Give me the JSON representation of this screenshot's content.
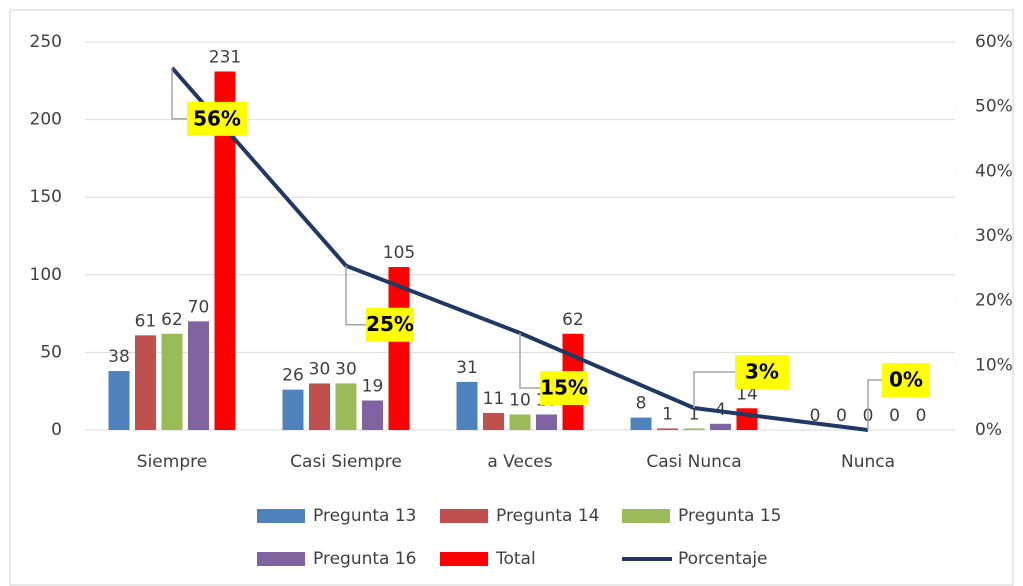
{
  "chart_data": {
    "type": "bar",
    "categories": [
      "Siempre",
      "Casi Siempre",
      "a Veces",
      "Casi Nunca",
      "Nunca"
    ],
    "series": [
      {
        "name": "Pregunta 13",
        "color": "#4f81bd",
        "values": [
          38,
          26,
          31,
          8,
          0
        ]
      },
      {
        "name": "Pregunta 14",
        "color": "#c0504d",
        "values": [
          61,
          30,
          11,
          1,
          0
        ]
      },
      {
        "name": "Pregunta 15",
        "color": "#9bbb59",
        "values": [
          62,
          30,
          10,
          1,
          0
        ]
      },
      {
        "name": "Pregunta 16",
        "color": "#8064a2",
        "values": [
          70,
          19,
          10,
          4,
          0
        ]
      },
      {
        "name": "Total",
        "color": "#ff0000",
        "values": [
          231,
          105,
          62,
          14,
          0
        ]
      },
      {
        "name": "Porcentaje",
        "color": "#1f3864",
        "type": "line",
        "axis": "y2",
        "values": [
          56,
          25.4,
          15,
          3.4,
          0
        ],
        "value_labels": [
          "56%",
          "25%",
          "15%",
          "3%",
          "0%"
        ]
      }
    ],
    "ylim": [
      0,
      250
    ],
    "yticks": [
      0,
      50,
      100,
      150,
      200,
      250
    ],
    "y2lim": [
      0,
      60
    ],
    "y2ticks": [
      {
        "value": 0,
        "label": "0%"
      },
      {
        "value": 10,
        "label": "10%"
      },
      {
        "value": 20,
        "label": "20%"
      },
      {
        "value": 30,
        "label": "30%"
      },
      {
        "value": 40,
        "label": "40%"
      },
      {
        "value": 50,
        "label": "50%"
      },
      {
        "value": 60,
        "label": "60%"
      }
    ],
    "grid": true
  }
}
